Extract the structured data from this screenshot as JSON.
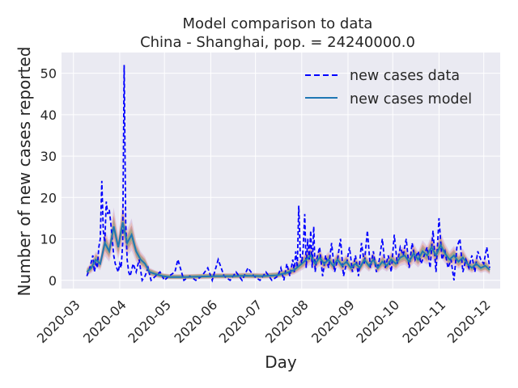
{
  "chart_data": {
    "type": "line",
    "title": "Model comparison to data",
    "subtitle": "China - Shanghai, pop. = 24240000.0",
    "xlabel": "Day",
    "ylabel": "Number of new cases reported",
    "x_tick_labels": [
      "2020-03",
      "2020-04",
      "2020-05",
      "2020-06",
      "2020-07",
      "2020-08",
      "2020-09",
      "2020-10",
      "2020-11",
      "2020-12"
    ],
    "x_tick_dates": [
      "2020-03-01",
      "2020-04-01",
      "2020-05-01",
      "2020-06-01",
      "2020-07-01",
      "2020-08-01",
      "2020-09-01",
      "2020-10-01",
      "2020-11-01",
      "2020-12-01"
    ],
    "xlim": [
      "2020-02-22",
      "2020-12-12"
    ],
    "y_ticks": [
      0,
      10,
      20,
      30,
      40,
      50
    ],
    "ylim": [
      -2,
      55
    ],
    "grid": true,
    "legend_position": "top-right",
    "colors": {
      "background": "#eaeaf2",
      "grid": "#ffffff",
      "data": "#0000ff",
      "model": "#1f77b4"
    },
    "series": [
      {
        "name": "new cases data",
        "style": "dashed",
        "x": [
          "2020-03-10",
          "2020-03-12",
          "2020-03-14",
          "2020-03-15",
          "2020-03-16",
          "2020-03-17",
          "2020-03-18",
          "2020-03-19",
          "2020-03-20",
          "2020-03-21",
          "2020-03-22",
          "2020-03-23",
          "2020-03-24",
          "2020-03-25",
          "2020-03-26",
          "2020-03-27",
          "2020-03-28",
          "2020-03-29",
          "2020-03-30",
          "2020-03-31",
          "2020-04-01",
          "2020-04-02",
          "2020-04-03",
          "2020-04-04",
          "2020-04-05",
          "2020-04-06",
          "2020-04-07",
          "2020-04-08",
          "2020-04-10",
          "2020-04-12",
          "2020-04-14",
          "2020-04-16",
          "2020-04-18",
          "2020-04-20",
          "2020-04-22",
          "2020-04-25",
          "2020-04-28",
          "2020-05-01",
          "2020-05-04",
          "2020-05-08",
          "2020-05-10",
          "2020-05-14",
          "2020-05-18",
          "2020-05-22",
          "2020-05-26",
          "2020-05-30",
          "2020-06-02",
          "2020-06-06",
          "2020-06-10",
          "2020-06-14",
          "2020-06-18",
          "2020-06-22",
          "2020-06-26",
          "2020-06-30",
          "2020-07-04",
          "2020-07-08",
          "2020-07-12",
          "2020-07-16",
          "2020-07-18",
          "2020-07-20",
          "2020-07-22",
          "2020-07-24",
          "2020-07-25",
          "2020-07-26",
          "2020-07-27",
          "2020-07-28",
          "2020-07-29",
          "2020-07-30",
          "2020-07-31",
          "2020-08-01",
          "2020-08-02",
          "2020-08-03",
          "2020-08-04",
          "2020-08-05",
          "2020-08-06",
          "2020-08-07",
          "2020-08-08",
          "2020-08-09",
          "2020-08-10",
          "2020-08-11",
          "2020-08-13",
          "2020-08-15",
          "2020-08-17",
          "2020-08-19",
          "2020-08-21",
          "2020-08-23",
          "2020-08-25",
          "2020-08-27",
          "2020-08-29",
          "2020-08-31",
          "2020-09-02",
          "2020-09-04",
          "2020-09-06",
          "2020-09-08",
          "2020-09-10",
          "2020-09-12",
          "2020-09-14",
          "2020-09-16",
          "2020-09-18",
          "2020-09-20",
          "2020-09-22",
          "2020-09-24",
          "2020-09-26",
          "2020-09-28",
          "2020-09-30",
          "2020-10-02",
          "2020-10-04",
          "2020-10-06",
          "2020-10-08",
          "2020-10-10",
          "2020-10-12",
          "2020-10-14",
          "2020-10-16",
          "2020-10-18",
          "2020-10-20",
          "2020-10-22",
          "2020-10-24",
          "2020-10-26",
          "2020-10-28",
          "2020-10-30",
          "2020-11-01",
          "2020-11-03",
          "2020-11-05",
          "2020-11-07",
          "2020-11-09",
          "2020-11-11",
          "2020-11-13",
          "2020-11-15",
          "2020-11-17",
          "2020-11-19",
          "2020-11-21",
          "2020-11-23",
          "2020-11-25",
          "2020-11-27",
          "2020-11-29",
          "2020-12-01",
          "2020-12-03",
          "2020-12-05"
        ],
        "values": [
          1,
          3,
          6,
          2,
          4,
          3,
          8,
          10,
          24,
          12,
          9,
          19,
          16,
          17,
          14,
          10,
          6,
          4,
          3,
          2,
          4,
          3,
          9,
          52,
          14,
          5,
          2,
          1,
          4,
          2,
          5,
          0,
          1,
          3,
          0,
          1,
          2,
          0,
          1,
          2,
          5,
          0,
          1,
          0,
          1,
          3,
          0,
          5,
          1,
          0,
          2,
          0,
          3,
          1,
          0,
          2,
          0,
          1,
          3,
          0,
          4,
          1,
          3,
          5,
          2,
          7,
          3,
          18,
          6,
          4,
          8,
          16,
          3,
          10,
          5,
          12,
          3,
          13,
          2,
          5,
          8,
          1,
          6,
          3,
          9,
          2,
          5,
          10,
          1,
          4,
          8,
          2,
          6,
          1,
          9,
          4,
          12,
          3,
          7,
          2,
          5,
          10,
          3,
          6,
          2,
          11,
          4,
          8,
          6,
          10,
          3,
          9,
          5,
          7,
          4,
          6,
          8,
          3,
          12,
          2,
          15,
          5,
          7,
          3,
          5,
          0,
          8,
          10,
          2,
          5,
          3,
          6,
          2,
          7,
          5,
          4,
          8,
          3
        ]
      },
      {
        "name": "new cases model",
        "style": "solid",
        "x": [
          "2020-03-10",
          "2020-03-13",
          "2020-03-16",
          "2020-03-19",
          "2020-03-22",
          "2020-03-25",
          "2020-03-28",
          "2020-03-31",
          "2020-04-03",
          "2020-04-06",
          "2020-04-09",
          "2020-04-12",
          "2020-04-15",
          "2020-04-18",
          "2020-04-21",
          "2020-04-25",
          "2020-04-30",
          "2020-05-05",
          "2020-05-15",
          "2020-05-25",
          "2020-06-05",
          "2020-06-15",
          "2020-06-25",
          "2020-07-05",
          "2020-07-15",
          "2020-07-22",
          "2020-07-27",
          "2020-08-01",
          "2020-08-04",
          "2020-08-07",
          "2020-08-10",
          "2020-08-13",
          "2020-08-16",
          "2020-08-19",
          "2020-08-22",
          "2020-08-25",
          "2020-08-28",
          "2020-08-31",
          "2020-09-03",
          "2020-09-06",
          "2020-09-09",
          "2020-09-12",
          "2020-09-15",
          "2020-09-18",
          "2020-09-21",
          "2020-09-24",
          "2020-09-27",
          "2020-09-30",
          "2020-10-03",
          "2020-10-06",
          "2020-10-09",
          "2020-10-12",
          "2020-10-15",
          "2020-10-18",
          "2020-10-21",
          "2020-10-24",
          "2020-10-27",
          "2020-10-30",
          "2020-11-02",
          "2020-11-05",
          "2020-11-08",
          "2020-11-11",
          "2020-11-14",
          "2020-11-17",
          "2020-11-20",
          "2020-11-23",
          "2020-11-26",
          "2020-11-29",
          "2020-12-02",
          "2020-12-05"
        ],
        "values": [
          2,
          3,
          5,
          4,
          9,
          7,
          13,
          8,
          14,
          9,
          11,
          7,
          5,
          4,
          2,
          1.5,
          1,
          0.8,
          0.8,
          0.9,
          1,
          1,
          1.1,
          1,
          1.2,
          1.8,
          2.5,
          4,
          5,
          6,
          4,
          5.5,
          4,
          5,
          3.5,
          5,
          3.5,
          4.5,
          3,
          4,
          3,
          5,
          3.5,
          5,
          3,
          4.5,
          3.5,
          5,
          4,
          5.5,
          6,
          4.5,
          6.5,
          5,
          7,
          6,
          8,
          6,
          8.5,
          6.5,
          5,
          6,
          4.5,
          5.5,
          4,
          3,
          4,
          3,
          3.5,
          2.5
        ]
      }
    ]
  }
}
